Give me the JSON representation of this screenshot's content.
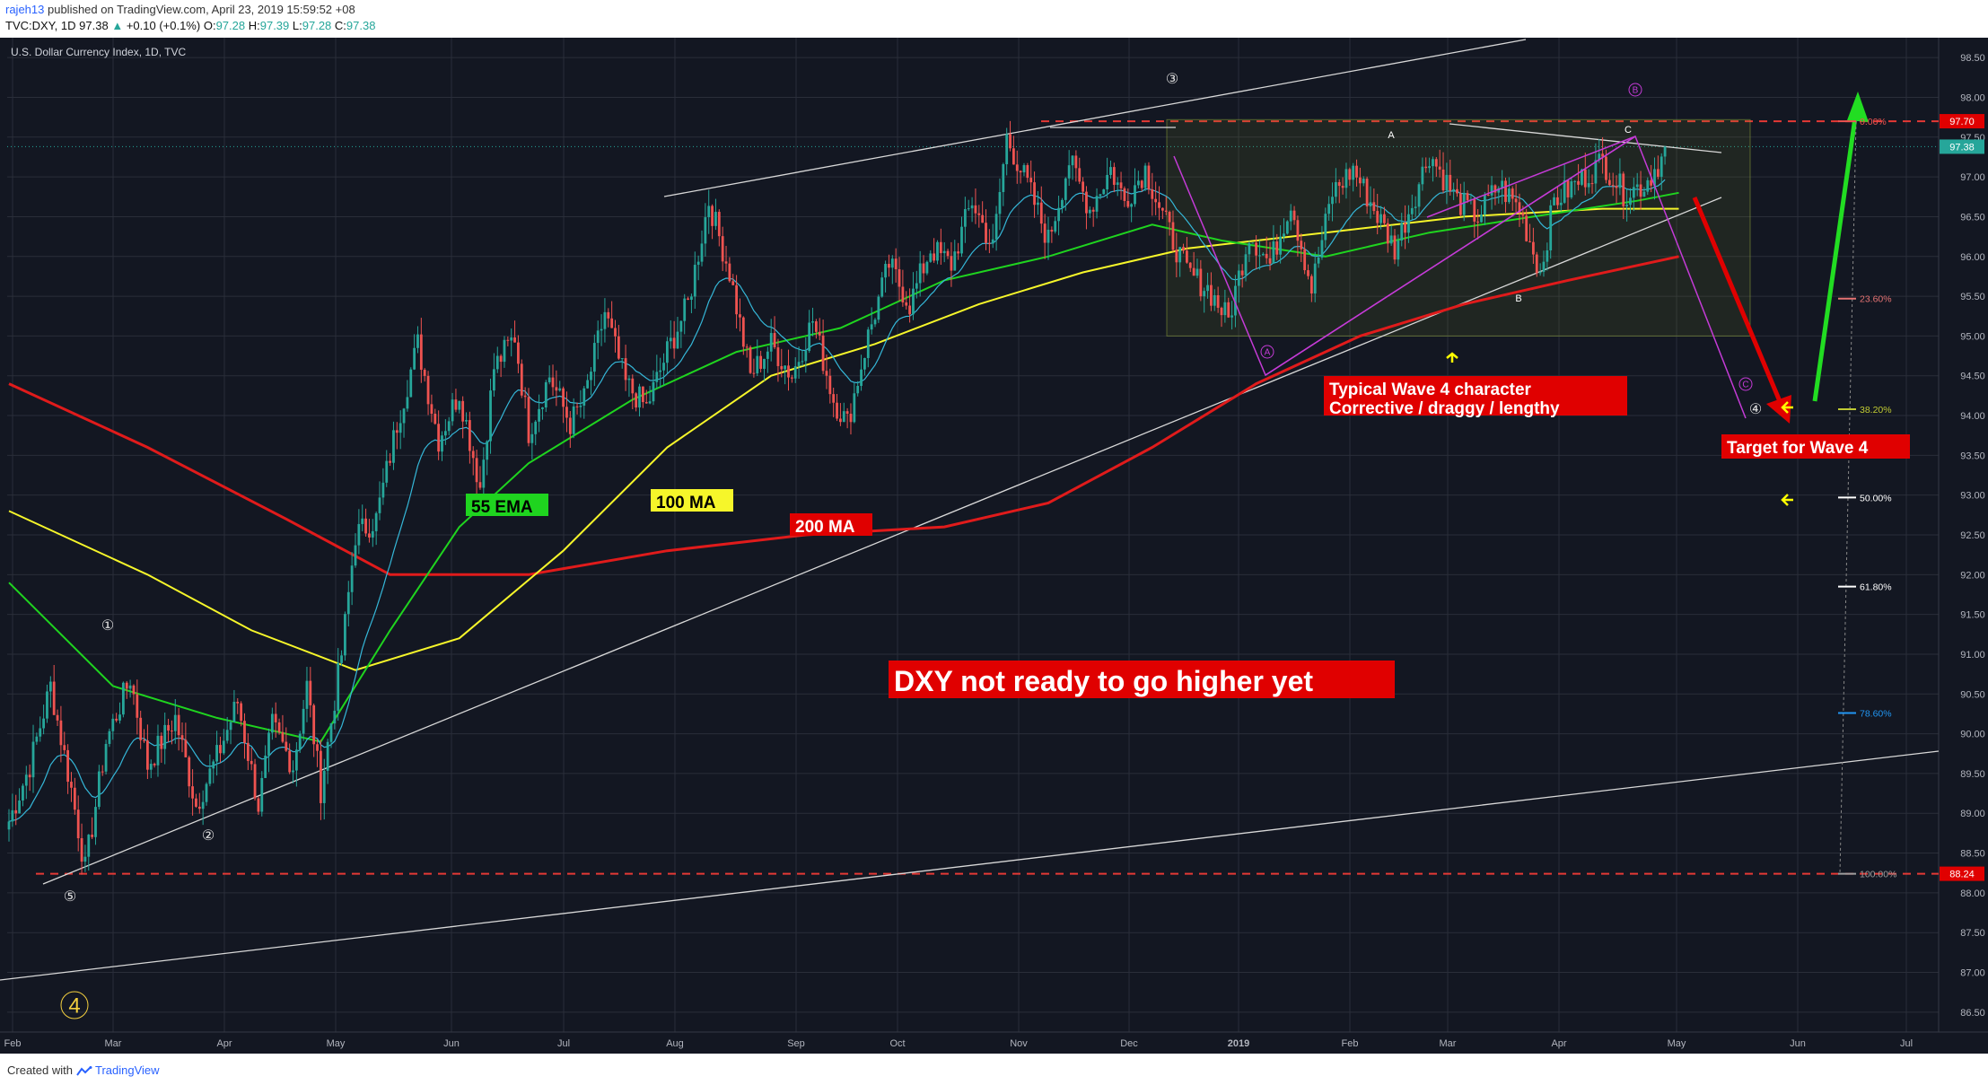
{
  "header": {
    "user": "rajeh13",
    "published": " published on TradingView.com, April 23, 2019 15:59:52 +08",
    "symbol": "TVC:DXY, 1D",
    "last": "97.38",
    "change": "+0.10 (+0.1%)",
    "o_label": "O:",
    "o": "97.28",
    "h_label": "H:",
    "h": "97.39",
    "l_label": "L:",
    "l": "97.28",
    "c_label": "C:",
    "c": "97.38"
  },
  "footer": {
    "created_with": "Created with",
    "brand": "TradingView"
  },
  "colors": {
    "bg": "#131722",
    "grid": "#2a2e39",
    "up": "#26a69a",
    "down": "#ef5350",
    "ema55": "#1fd41f",
    "ma100": "#f6f62a",
    "ma200": "#e01b1b",
    "ema_fast": "#35b7d8",
    "magenta": "#c43bd6",
    "arrow_up": "#22dd22",
    "label_red": "#e00000",
    "yellow_arrow": "#ffff00"
  },
  "chart_data": {
    "type": "candlestick",
    "title": "U.S. Dollar Currency Index, 1D, TVC",
    "ylim": [
      86.3,
      98.8
    ],
    "y_ticks": [
      "98.50",
      "98.00",
      "97.50",
      "97.00",
      "96.50",
      "96.00",
      "95.50",
      "95.00",
      "94.50",
      "94.00",
      "93.50",
      "93.00",
      "92.50",
      "92.00",
      "91.50",
      "91.00",
      "90.50",
      "90.00",
      "89.50",
      "89.00",
      "88.50",
      "88.00",
      "87.50",
      "87.00",
      "86.50"
    ],
    "x_ticks": [
      "Feb",
      "Mar",
      "Apr",
      "May",
      "Jun",
      "Jul",
      "Aug",
      "Sep",
      "Oct",
      "Nov",
      "Dec",
      "2019",
      "Feb",
      "Mar",
      "Apr",
      "May",
      "Jun",
      "Jul"
    ],
    "price_tags": [
      {
        "text": "97.70",
        "value": 97.7,
        "color": "#e00000"
      },
      {
        "text": "97.38",
        "value": 97.38,
        "color": "#26a69a"
      },
      {
        "text": "88.24",
        "value": 88.24,
        "color": "#e00000"
      }
    ],
    "horizontal_levels": [
      97.7,
      88.24
    ],
    "fib_levels": [
      {
        "label": "0.00%",
        "value": 97.7,
        "color": "#ef5350"
      },
      {
        "label": "23.60%",
        "value": 95.47,
        "color": "#e57373"
      },
      {
        "label": "38.20%",
        "value": 94.08,
        "color": "#c0ca33"
      },
      {
        "label": "50.00%",
        "value": 92.97,
        "color": "#ffffff"
      },
      {
        "label": "61.80%",
        "value": 91.85,
        "color": "#ffffff"
      },
      {
        "label": "78.60%",
        "value": 90.26,
        "color": "#2196f3"
      },
      {
        "label": "100.00%",
        "value": 88.24,
        "color": "#9e9e9e"
      }
    ],
    "candles_note": "daily OHLC approximated from picture",
    "candle_path": [
      [
        0,
        88.9
      ],
      [
        6,
        89.6
      ],
      [
        12,
        90.6
      ],
      [
        18,
        89.3
      ],
      [
        22,
        88.3
      ],
      [
        28,
        89.9
      ],
      [
        35,
        90.7
      ],
      [
        40,
        89.6
      ],
      [
        48,
        90.2
      ],
      [
        54,
        89.1
      ],
      [
        60,
        89.7
      ],
      [
        66,
        90.4
      ],
      [
        72,
        89.1
      ],
      [
        76,
        90.1
      ],
      [
        82,
        89.6
      ],
      [
        86,
        90.6
      ],
      [
        90,
        89.3
      ],
      [
        96,
        91.0
      ],
      [
        100,
        92.5
      ],
      [
        106,
        92.7
      ],
      [
        112,
        93.9
      ],
      [
        118,
        94.9
      ],
      [
        124,
        93.7
      ],
      [
        130,
        94.3
      ],
      [
        136,
        93.1
      ],
      [
        140,
        94.6
      ],
      [
        146,
        95.0
      ],
      [
        150,
        93.8
      ],
      [
        156,
        94.5
      ],
      [
        162,
        93.9
      ],
      [
        166,
        94.2
      ],
      [
        172,
        95.3
      ],
      [
        178,
        94.4
      ],
      [
        184,
        94.1
      ],
      [
        190,
        94.8
      ],
      [
        196,
        95.4
      ],
      [
        202,
        96.7
      ],
      [
        208,
        95.8
      ],
      [
        214,
        94.5
      ],
      [
        220,
        94.9
      ],
      [
        226,
        94.5
      ],
      [
        232,
        95.2
      ],
      [
        238,
        94.2
      ],
      [
        242,
        93.9
      ],
      [
        248,
        95.0
      ],
      [
        254,
        95.9
      ],
      [
        260,
        95.4
      ],
      [
        266,
        96.1
      ],
      [
        272,
        95.9
      ],
      [
        278,
        96.7
      ],
      [
        284,
        96.1
      ],
      [
        288,
        97.5
      ],
      [
        294,
        96.9
      ],
      [
        300,
        96.2
      ],
      [
        306,
        97.2
      ],
      [
        312,
        96.6
      ],
      [
        318,
        97.1
      ],
      [
        322,
        96.7
      ],
      [
        328,
        97.1
      ],
      [
        334,
        96.4
      ],
      [
        340,
        95.8
      ],
      [
        346,
        95.6
      ],
      [
        352,
        95.2
      ],
      [
        358,
        96.3
      ],
      [
        364,
        95.9
      ],
      [
        370,
        96.7
      ],
      [
        376,
        95.6
      ],
      [
        382,
        96.8
      ],
      [
        388,
        97.1
      ],
      [
        394,
        96.6
      ],
      [
        400,
        96.1
      ],
      [
        406,
        96.8
      ],
      [
        410,
        97.3
      ],
      [
        418,
        96.7
      ],
      [
        424,
        96.5
      ],
      [
        430,
        96.9
      ],
      [
        436,
        96.6
      ],
      [
        442,
        95.8
      ],
      [
        446,
        96.7
      ],
      [
        452,
        96.9
      ],
      [
        460,
        97.2
      ],
      [
        466,
        96.8
      ],
      [
        472,
        96.9
      ],
      [
        478,
        97.3
      ]
    ],
    "moving_averages": {
      "ema55": [
        [
          0,
          91.9
        ],
        [
          30,
          90.6
        ],
        [
          60,
          90.2
        ],
        [
          90,
          89.9
        ],
        [
          110,
          91.3
        ],
        [
          130,
          92.6
        ],
        [
          150,
          93.4
        ],
        [
          180,
          94.2
        ],
        [
          210,
          94.8
        ],
        [
          240,
          95.1
        ],
        [
          270,
          95.7
        ],
        [
          300,
          96.0
        ],
        [
          330,
          96.4
        ],
        [
          350,
          96.2
        ],
        [
          380,
          96.0
        ],
        [
          410,
          96.3
        ],
        [
          440,
          96.5
        ],
        [
          470,
          96.7
        ],
        [
          482,
          96.8
        ]
      ],
      "ma100": [
        [
          0,
          92.8
        ],
        [
          40,
          92.0
        ],
        [
          70,
          91.3
        ],
        [
          100,
          90.8
        ],
        [
          130,
          91.2
        ],
        [
          160,
          92.3
        ],
        [
          190,
          93.6
        ],
        [
          220,
          94.5
        ],
        [
          250,
          94.9
        ],
        [
          280,
          95.4
        ],
        [
          310,
          95.8
        ],
        [
          340,
          96.1
        ],
        [
          380,
          96.3
        ],
        [
          420,
          96.5
        ],
        [
          460,
          96.6
        ],
        [
          482,
          96.6
        ]
      ],
      "ma200": [
        [
          0,
          94.4
        ],
        [
          40,
          93.6
        ],
        [
          80,
          92.7
        ],
        [
          110,
          92.0
        ],
        [
          150,
          92.0
        ],
        [
          190,
          92.3
        ],
        [
          230,
          92.5
        ],
        [
          270,
          92.6
        ],
        [
          300,
          92.9
        ],
        [
          330,
          93.6
        ],
        [
          360,
          94.4
        ],
        [
          390,
          95.0
        ],
        [
          420,
          95.4
        ],
        [
          450,
          95.7
        ],
        [
          482,
          96.0
        ]
      ]
    },
    "annotations": {
      "wave_labels": [
        "①",
        "②",
        "③",
        "④",
        "⑤"
      ],
      "big_wave": "4",
      "abc": [
        "A",
        "B",
        "C"
      ],
      "circled_abc": [
        "A",
        "B",
        "C"
      ],
      "text_boxes": [
        {
          "name": "ema-label",
          "text": "55 EMA",
          "bg": "#1fd41f",
          "fg": "#000000"
        },
        {
          "name": "ma100-label",
          "text": "100 MA",
          "bg": "#f6f62a",
          "fg": "#000000"
        },
        {
          "name": "ma200-label",
          "text": "200 MA",
          "bg": "#e00000",
          "fg": "#ffffff"
        },
        {
          "name": "wave4-char-label",
          "text": "Typical Wave 4 character\nCorrective / draggy / lengthy",
          "bg": "#e00000",
          "fg": "#ffffff"
        },
        {
          "name": "target-label",
          "text": "Target for Wave 4",
          "bg": "#e00000",
          "fg": "#ffffff"
        },
        {
          "name": "headline-label",
          "text": "DXY not ready to go higher yet",
          "bg": "#e00000",
          "fg": "#ffffff"
        }
      ]
    }
  }
}
